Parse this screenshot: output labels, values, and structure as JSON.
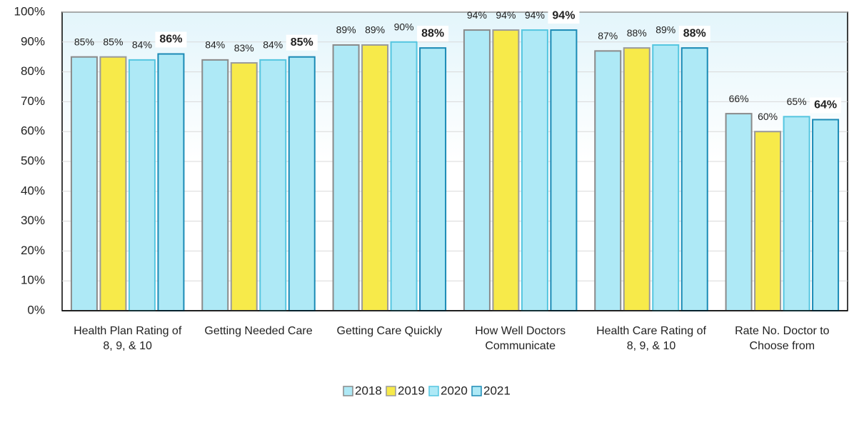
{
  "chart_data": {
    "type": "bar",
    "categories": [
      [
        "Health Plan Rating of",
        "8, 9, & 10"
      ],
      [
        "Getting Needed Care"
      ],
      [
        "Getting Care Quickly"
      ],
      [
        "How Well Doctors",
        "Communicate"
      ],
      [
        "Health Care Rating of",
        "8, 9, & 10"
      ],
      [
        "Rate No. Doctor to",
        "Choose from"
      ]
    ],
    "series": [
      {
        "name": "2018",
        "color": "#aee9f6",
        "border": "#8a8a8a",
        "values": [
          85,
          84,
          89,
          94,
          87,
          66
        ],
        "value_labels": [
          "85%",
          "84%",
          "89%",
          "94%",
          "87%",
          "66%"
        ]
      },
      {
        "name": "2019",
        "color": "#f7ea4a",
        "border": "#9a9a9a",
        "values": [
          85,
          83,
          89,
          94,
          88,
          60
        ],
        "value_labels": [
          "85%",
          "83%",
          "89%",
          "94%",
          "88%",
          "60%"
        ]
      },
      {
        "name": "2020",
        "color": "#aee9f6",
        "border": "#55c6e0",
        "values": [
          84,
          84,
          90,
          94,
          89,
          65
        ],
        "value_labels": [
          "84%",
          "84%",
          "90%",
          "94%",
          "89%",
          "65%"
        ]
      },
      {
        "name": "2021",
        "color": "#aee9f6",
        "border": "#1b8ab5",
        "bold_labels": true,
        "values": [
          86,
          85,
          88,
          94,
          88,
          64
        ],
        "value_labels": [
          "86%",
          "85%",
          "88%",
          "94%",
          "88%",
          "64%"
        ]
      }
    ],
    "ylim": [
      0,
      100
    ],
    "yticks": [
      {
        "value": 0,
        "label": "0%"
      },
      {
        "value": 10,
        "label": "10%"
      },
      {
        "value": 20,
        "label": "20%"
      },
      {
        "value": 30,
        "label": "30%"
      },
      {
        "value": 40,
        "label": "40%"
      },
      {
        "value": 50,
        "label": "50%"
      },
      {
        "value": 60,
        "label": "60%"
      },
      {
        "value": 70,
        "label": "70%"
      },
      {
        "value": 80,
        "label": "80%"
      },
      {
        "value": 90,
        "label": "90%"
      },
      {
        "value": 100,
        "label": "100%"
      }
    ],
    "grid": true,
    "legend": "bottom"
  }
}
